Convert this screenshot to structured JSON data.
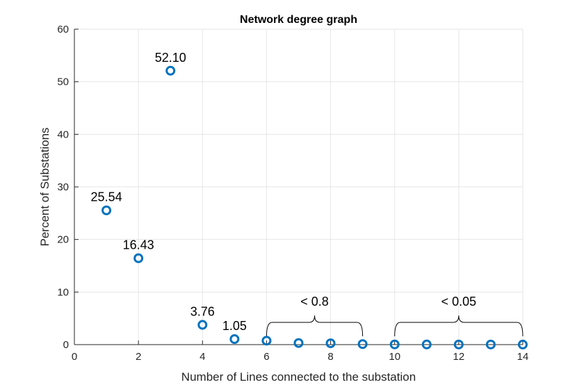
{
  "chart_data": {
    "type": "scatter",
    "title": "Network degree graph",
    "xlabel": "Number of Lines connected to the substation",
    "ylabel": "Percent of Substations",
    "xlim": [
      0,
      14
    ],
    "ylim": [
      0,
      60
    ],
    "xticks": [
      0,
      2,
      4,
      6,
      8,
      10,
      12,
      14
    ],
    "yticks": [
      0,
      10,
      20,
      30,
      40,
      50,
      60
    ],
    "grid": true,
    "marker": "open-circle",
    "color": "#0072BD",
    "series": [
      {
        "x": [
          1,
          2,
          3,
          4,
          5,
          6,
          7,
          8,
          9,
          10,
          11,
          12,
          13,
          14
        ],
        "y": [
          25.54,
          16.43,
          52.1,
          3.76,
          1.05,
          0.75,
          0.3,
          0.25,
          0.1,
          0.04,
          0.03,
          0.02,
          0.02,
          0.01
        ]
      }
    ],
    "point_labels": [
      {
        "x": 1,
        "y": 25.54,
        "text": "25.54"
      },
      {
        "x": 2,
        "y": 16.43,
        "text": "16.43"
      },
      {
        "x": 3,
        "y": 52.1,
        "text": "52.10"
      },
      {
        "x": 4,
        "y": 3.76,
        "text": "3.76"
      },
      {
        "x": 5,
        "y": 1.05,
        "text": "1.05"
      }
    ],
    "annotations": [
      {
        "type": "brace",
        "x_from": 6,
        "x_to": 9,
        "text": "< 0.8"
      },
      {
        "type": "brace",
        "x_from": 10,
        "x_to": 14,
        "text": "< 0.05"
      }
    ]
  }
}
